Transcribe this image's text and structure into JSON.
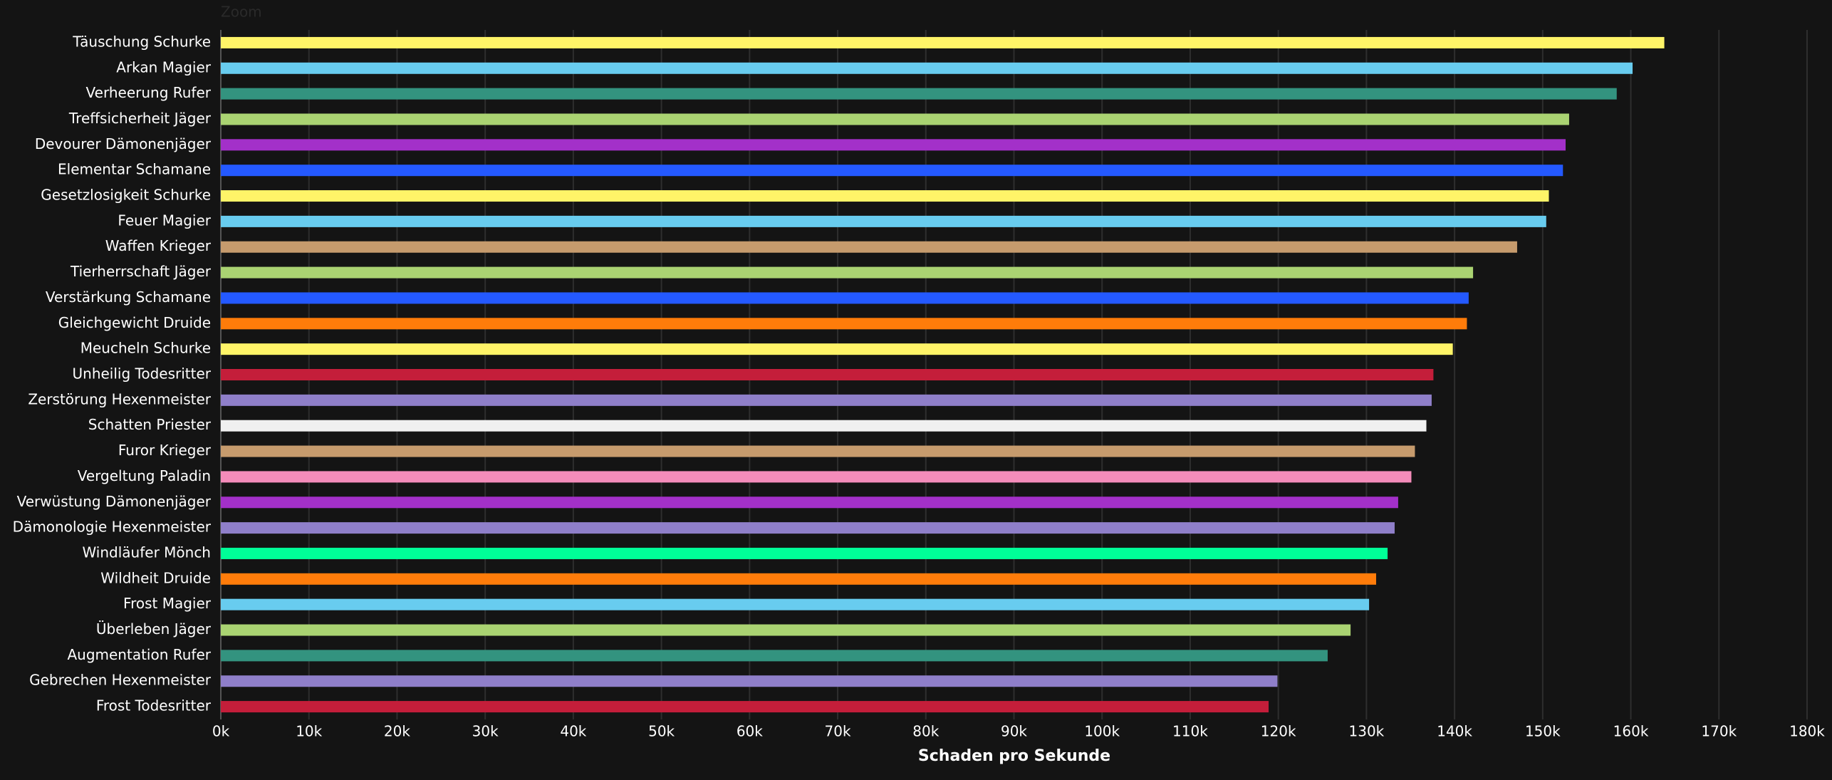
{
  "chart_data": {
    "type": "bar",
    "orientation": "horizontal",
    "zoom_label": "Zoom",
    "x_label": "Schaden pro Sekunde",
    "categories": [
      "Täuschung Schurke",
      "Arkan Magier",
      "Verheerung Rufer",
      "Treffsicherheit Jäger",
      "Devourer Dämonenjäger",
      "Elementar Schamane",
      "Gesetzlosigkeit Schurke",
      "Feuer Magier",
      "Waffen Krieger",
      "Tierherrschaft Jäger",
      "Verstärkung Schamane",
      "Gleichgewicht Druide",
      "Meucheln Schurke",
      "Unheilig Todesritter",
      "Zerstörung Hexenmeister",
      "Schatten Priester",
      "Furor Krieger",
      "Vergeltung Paladin",
      "Verwüstung Dämonenjäger",
      "Dämonologie Hexenmeister",
      "Windläufer Mönch",
      "Wildheit Druide",
      "Frost Magier",
      "Überleben Jäger",
      "Augmentation Rufer",
      "Gebrechen Hexenmeister",
      "Frost Todesritter"
    ],
    "values": [
      163800,
      160200,
      158400,
      153000,
      152600,
      152300,
      150700,
      150400,
      147100,
      142100,
      141600,
      141400,
      139800,
      137600,
      137400,
      136800,
      135500,
      135100,
      133600,
      133200,
      132400,
      131100,
      130300,
      128200,
      125600,
      119900,
      118900
    ],
    "colors": [
      "#fff468",
      "#68ccef",
      "#33937f",
      "#aad372",
      "#a330c9",
      "#2459ff",
      "#fff468",
      "#68ccef",
      "#c69b6d",
      "#aad372",
      "#2459ff",
      "#ff7c0a",
      "#fff468",
      "#c41e3a",
      "#8f7fc9",
      "#f0f0f0",
      "#c69b6d",
      "#f48cba",
      "#a330c9",
      "#8f7fc9",
      "#00ff98",
      "#ff7c0a",
      "#68ccef",
      "#aad372",
      "#33937f",
      "#8f7fc9",
      "#c41e3a"
    ],
    "xlim": [
      0,
      180000
    ],
    "xticks": [
      {
        "value": 0,
        "label": "0k"
      },
      {
        "value": 10000,
        "label": "10k"
      },
      {
        "value": 20000,
        "label": "20k"
      },
      {
        "value": 30000,
        "label": "30k"
      },
      {
        "value": 40000,
        "label": "40k"
      },
      {
        "value": 50000,
        "label": "50k"
      },
      {
        "value": 60000,
        "label": "60k"
      },
      {
        "value": 70000,
        "label": "70k"
      },
      {
        "value": 80000,
        "label": "80k"
      },
      {
        "value": 90000,
        "label": "90k"
      },
      {
        "value": 100000,
        "label": "100k"
      },
      {
        "value": 110000,
        "label": "110k"
      },
      {
        "value": 120000,
        "label": "120k"
      },
      {
        "value": 130000,
        "label": "130k"
      },
      {
        "value": 140000,
        "label": "140k"
      },
      {
        "value": 150000,
        "label": "150k"
      },
      {
        "value": 160000,
        "label": "160k"
      },
      {
        "value": 170000,
        "label": "170k"
      },
      {
        "value": 180000,
        "label": "180k"
      }
    ],
    "grid": true
  }
}
